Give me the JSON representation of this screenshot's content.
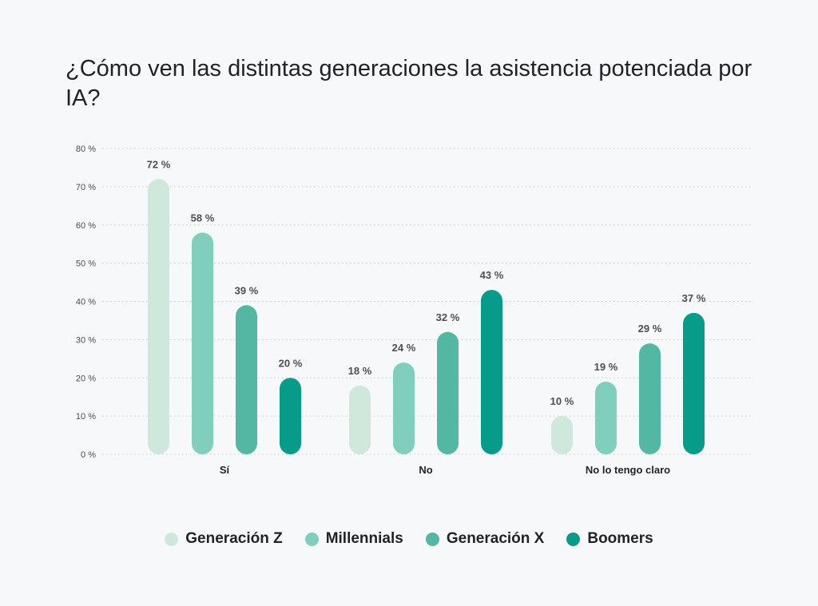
{
  "chart_data": {
    "type": "bar",
    "title": "¿Cómo ven las distintas generaciones la asistencia potenciada por IA?",
    "categories": [
      "Sí",
      "No",
      "No lo tengo claro"
    ],
    "series": [
      {
        "name": "Generación Z",
        "color": "#cfe8dc",
        "values": [
          72,
          18,
          10
        ],
        "labels": [
          "72 %",
          "18 %",
          "10 %"
        ]
      },
      {
        "name": "Millennials",
        "color": "#80cfbc",
        "values": [
          58,
          24,
          19
        ],
        "labels": [
          "58 %",
          "24 %",
          "19 %"
        ]
      },
      {
        "name": "Generación X",
        "color": "#52b7a3",
        "values": [
          39,
          32,
          29
        ],
        "labels": [
          "39 %",
          "32 %",
          "29 %"
        ]
      },
      {
        "name": "Boomers",
        "color": "#079b8a",
        "values": [
          20,
          43,
          37
        ],
        "labels": [
          "20 %",
          "43 %",
          "37 %"
        ]
      }
    ],
    "y_ticks": [
      {
        "value": 0,
        "label": "0 %"
      },
      {
        "value": 10,
        "label": "10 %"
      },
      {
        "value": 20,
        "label": "20 %"
      },
      {
        "value": 30,
        "label": "30 %"
      },
      {
        "value": 40,
        "label": "40 %"
      },
      {
        "value": 50,
        "label": "50 %"
      },
      {
        "value": 60,
        "label": "60 %"
      },
      {
        "value": 70,
        "label": "70 %"
      },
      {
        "value": 80,
        "label": "80 %"
      }
    ],
    "ylim": [
      0,
      80
    ],
    "grid": true,
    "legend_position": "bottom-center"
  }
}
